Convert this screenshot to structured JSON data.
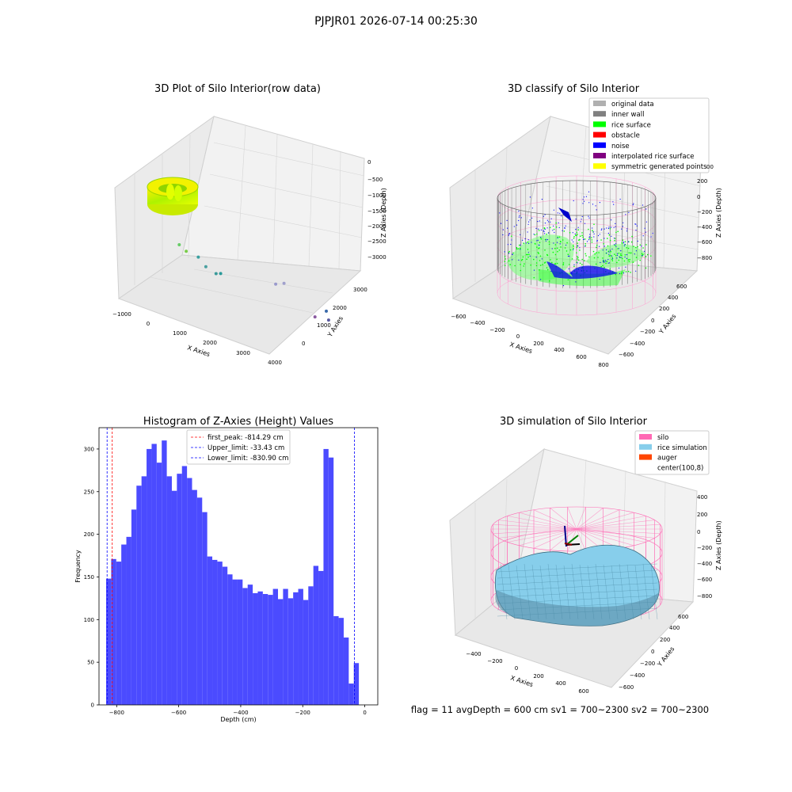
{
  "suptitle": "PJPJR01 2026-07-14 00:25:30",
  "footer": "flag = 11  avgDepth = 600 cm  sv1 = 700~2300  sv2 = 700~2300",
  "colors": {
    "hist_bar": "#4b4bff",
    "first_peak": "#ff0000",
    "limit": "#0000ff",
    "silo": "#ff69b4",
    "rice_sim": "#87ceeb",
    "auger": "#ff4500",
    "inner_wall": "#808080",
    "rice_surface": "#00ff00",
    "noise": "#0000ff"
  },
  "chart_data": [
    {
      "type": "scatter",
      "title": "3D Plot of Silo Interior(row data)",
      "xlabel": "X Axies",
      "ylabel": "Y Axies",
      "zlabel": "Z Axies (Depth)",
      "xticks": [
        "−1000",
        "0",
        "1000",
        "2000",
        "3000",
        "4000"
      ],
      "yticks": [
        "0",
        "1000",
        "2000",
        "3000"
      ],
      "zticks": [
        "0",
        "−500",
        "−1000",
        "−1500",
        "−2000",
        "−2500",
        "−3000"
      ],
      "xlim": [
        -1000,
        4000
      ],
      "ylim": [
        -500,
        3500
      ],
      "zlim": [
        -3300,
        100
      ],
      "outlier_points": [
        {
          "x": 820,
          "y": -250,
          "z": -1500
        },
        {
          "x": 1050,
          "y": -250,
          "z": -1600
        },
        {
          "x": 960,
          "y": 400,
          "z": -1950
        },
        {
          "x": 1250,
          "y": 350,
          "z": -2100
        },
        {
          "x": 1400,
          "y": 600,
          "z": -2300
        },
        {
          "x": 1250,
          "y": 1000,
          "z": -2450
        },
        {
          "x": 2700,
          "y": 1500,
          "z": -2450
        },
        {
          "x": 2900,
          "y": 1600,
          "z": -2400
        },
        {
          "x": 3400,
          "y": 2300,
          "z": -3300
        },
        {
          "x": 3700,
          "y": 2500,
          "z": -3350
        },
        {
          "x": 3700,
          "y": 2400,
          "z": -3100
        }
      ]
    },
    {
      "type": "scatter",
      "title": "3D classify of Silo Interior",
      "xlabel": "X Axies",
      "ylabel": "Y Axies",
      "zlabel": "Z Axies (Depth)",
      "xticks": [
        "−600",
        "−400",
        "−200",
        "0",
        "200",
        "400",
        "600",
        "800"
      ],
      "yticks": [
        "−600",
        "−400",
        "−200",
        "0",
        "200",
        "400",
        "600"
      ],
      "zticks": [
        "200",
        "0",
        "−200",
        "−400",
        "−600",
        "−800"
      ],
      "legend": [
        {
          "label": "original data",
          "color": "#b0b0b0"
        },
        {
          "label": "inner wall",
          "color": "#808080"
        },
        {
          "label": "rice surface",
          "color": "#00ff00"
        },
        {
          "label": "obstacle",
          "color": "#ff0000"
        },
        {
          "label": "noise",
          "color": "#0000ff"
        },
        {
          "label": "interpolated rice surface",
          "color": "#800080"
        },
        {
          "label": "symmetric generated points",
          "color": "#ffff00"
        }
      ],
      "zticks_extra": [
        "00"
      ]
    },
    {
      "type": "bar",
      "title": "Histogram of Z-Axies (Height) Values",
      "xlabel": "Depth (cm)",
      "ylabel": "Frequency",
      "xlim": [
        -857,
        42
      ],
      "ylim": [
        0,
        325
      ],
      "xticks": [
        -800,
        -600,
        -400,
        -200,
        0
      ],
      "yticks": [
        0,
        50,
        100,
        150,
        200,
        250,
        300
      ],
      "bin_start": -834,
      "bin_width": 16.3,
      "values": [
        148,
        171,
        168,
        188,
        197,
        229,
        257,
        268,
        300,
        306,
        284,
        310,
        268,
        251,
        271,
        280,
        266,
        252,
        243,
        226,
        174,
        170,
        168,
        162,
        153,
        147,
        147,
        137,
        141,
        131,
        133,
        130,
        129,
        136,
        124,
        136,
        125,
        132,
        136,
        123,
        139,
        163,
        157,
        300,
        290,
        104,
        102,
        79,
        25,
        49
      ],
      "vlines": [
        {
          "label": "first_peak: -814.29 cm",
          "x": -814.29,
          "color": "#ff0000"
        },
        {
          "label": "Upper_limit: -33.43 cm",
          "x": -33.43,
          "color": "#0000ff"
        },
        {
          "label": "Lower_limit: -830.90 cm",
          "x": -830.9,
          "color": "#0000ff"
        }
      ]
    },
    {
      "type": "area",
      "title": "3D simulation of Silo Interior",
      "xlabel": "X Axies",
      "ylabel": "Y Axies",
      "zlabel": "Z Axies (Depth)",
      "xticks": [
        "−400",
        "−200",
        "0",
        "200",
        "400",
        "600"
      ],
      "yticks": [
        "−600",
        "−400",
        "−200",
        "0",
        "200",
        "400",
        "600"
      ],
      "zticks": [
        "400",
        "200",
        "0",
        "−200",
        "−400",
        "−600",
        "−800"
      ],
      "legend": [
        {
          "label": "silo",
          "color": "#ff69b4"
        },
        {
          "label": "rice simulation",
          "color": "#87ceeb"
        },
        {
          "label": "auger",
          "color": "#ff4500"
        },
        {
          "label": "center(100,8)",
          "color": ""
        }
      ]
    }
  ]
}
